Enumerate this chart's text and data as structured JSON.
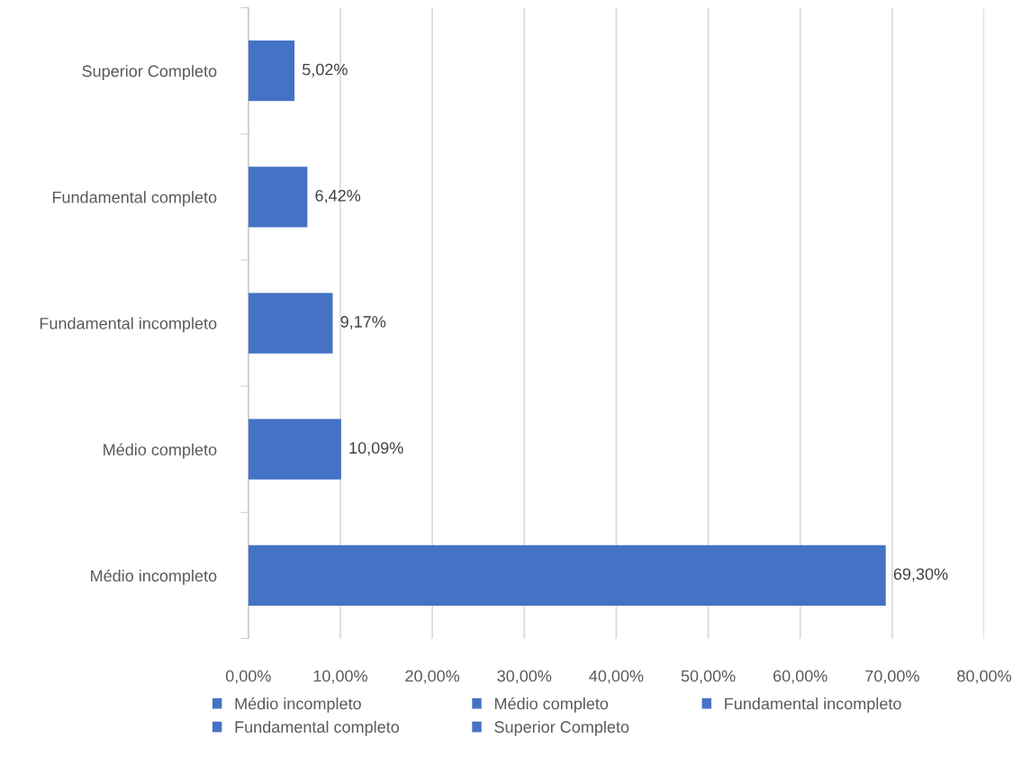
{
  "chart_data": {
    "type": "bar",
    "orientation": "horizontal",
    "categories": [
      "Superior Completo",
      "Fundamental completo",
      "Fundamental incompleto",
      "Médio completo",
      "Médio incompleto"
    ],
    "series": [
      {
        "name": "Médio incompleto",
        "color": "#4472c4",
        "values": [
          null,
          null,
          null,
          null,
          69.3
        ],
        "value_labels": [
          null,
          null,
          null,
          null,
          "69,30%"
        ]
      },
      {
        "name": "Médio completo",
        "color": "#4472c4",
        "values": [
          null,
          null,
          null,
          10.09,
          null
        ],
        "value_labels": [
          null,
          null,
          null,
          "10,09%",
          null
        ]
      },
      {
        "name": "Fundamental incompleto",
        "color": "#4472c4",
        "values": [
          null,
          null,
          9.17,
          null,
          null
        ],
        "value_labels": [
          null,
          null,
          "9,17%",
          null,
          null
        ]
      },
      {
        "name": "Fundamental completo",
        "color": "#4472c4",
        "values": [
          null,
          6.42,
          null,
          null,
          null
        ],
        "value_labels": [
          null,
          "6,42%",
          null,
          null,
          null
        ]
      },
      {
        "name": "Superior Completo",
        "color": "#4472c4",
        "values": [
          5.02,
          null,
          null,
          null,
          null
        ],
        "value_labels": [
          "5,02%",
          null,
          null,
          null,
          null
        ]
      }
    ],
    "xlim": [
      0,
      80
    ],
    "xticks": [
      {
        "value": 0,
        "label": "0,00%"
      },
      {
        "value": 10,
        "label": "10,00%"
      },
      {
        "value": 20,
        "label": "20,00%"
      },
      {
        "value": 30,
        "label": "30,00%"
      },
      {
        "value": 40,
        "label": "40,00%"
      },
      {
        "value": 50,
        "label": "50,00%"
      },
      {
        "value": 60,
        "label": "60,00%"
      },
      {
        "value": 70,
        "label": "70,00%"
      },
      {
        "value": 80,
        "label": "80,00%"
      }
    ],
    "grid": "x",
    "legend": "bottom"
  }
}
